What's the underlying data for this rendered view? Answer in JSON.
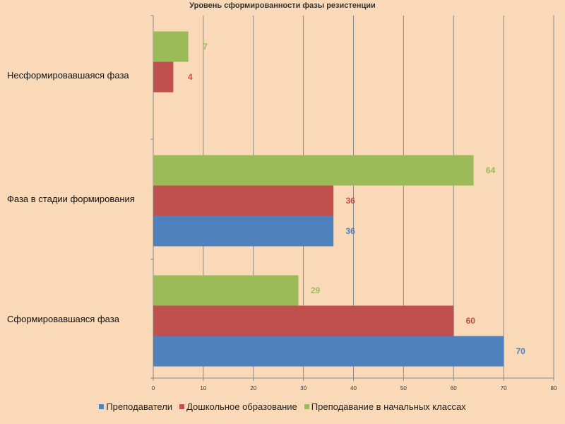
{
  "chart_data": {
    "type": "bar",
    "orientation": "horizontal",
    "title": "Уровень сформированности фазы резистенции",
    "xlabel": "",
    "ylabel": "",
    "xlim": [
      0,
      80
    ],
    "x_ticks": [
      0,
      10,
      20,
      30,
      40,
      50,
      60,
      70,
      80
    ],
    "grid": true,
    "legend_position": "bottom",
    "categories": [
      "Несформировавшаяся фаза",
      "Фаза в стадии формирования",
      "Сформировавшаяся фаза"
    ],
    "series": [
      {
        "name": "Преподаватели",
        "color": "#4f81bd",
        "values": [
          null,
          36,
          70
        ]
      },
      {
        "name": "Дошкольное образование",
        "color": "#c0504d",
        "values": [
          4,
          36,
          60
        ]
      },
      {
        "name": "Преподавание в начальных классах",
        "color": "#9bbb59",
        "values": [
          7,
          64,
          29
        ]
      }
    ]
  }
}
